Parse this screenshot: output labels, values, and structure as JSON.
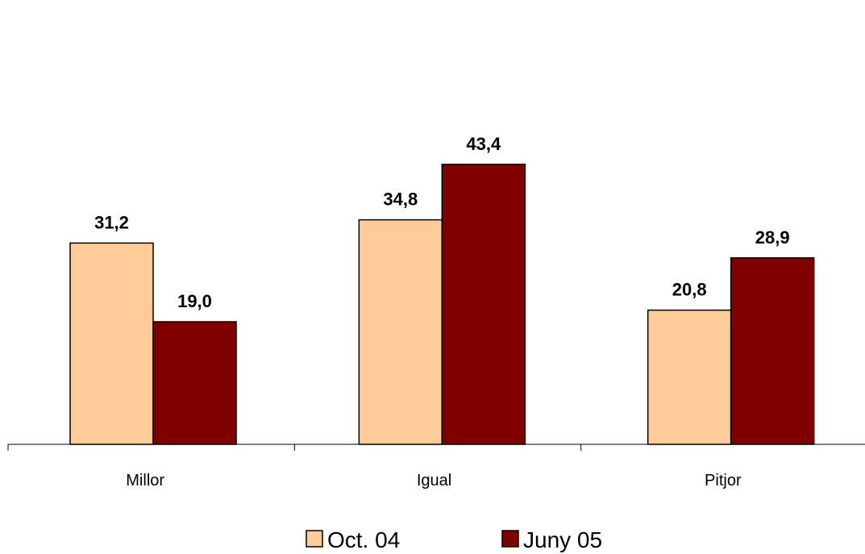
{
  "chart_data": {
    "type": "bar",
    "categories": [
      "Millor",
      "Igual",
      "Pitjor"
    ],
    "series": [
      {
        "name": "Oct. 04",
        "values": [
          31.2,
          34.8,
          20.8
        ],
        "labels": [
          "31,2",
          "34,8",
          "20,8"
        ],
        "color": "#FFCC99"
      },
      {
        "name": "Juny 05",
        "values": [
          19.0,
          43.4,
          28.9
        ],
        "labels": [
          "19,0",
          "43,4",
          "28,9"
        ],
        "color": "#800000"
      }
    ],
    "title": "",
    "xlabel": "",
    "ylabel": "",
    "ylim": [
      0,
      45
    ],
    "grid": false,
    "legend_position": "bottom"
  }
}
